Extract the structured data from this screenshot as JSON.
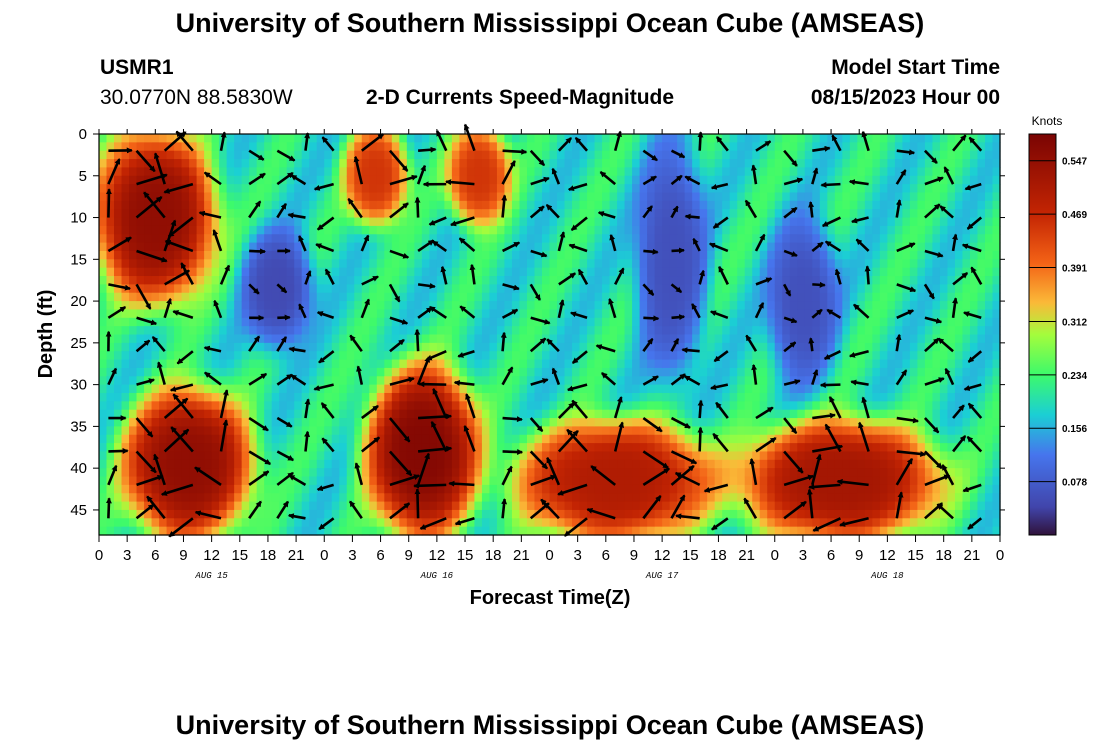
{
  "header": {
    "title": "University of Southern Mississippi Ocean Cube (AMSEAS)",
    "station": "USMR1",
    "coords": "30.0770N  88.5830W",
    "product": "2-D Currents Speed-Magnitude",
    "model_start_label": "Model Start Time",
    "model_start_value": "08/15/2023 Hour 00"
  },
  "footer_title": "University of Southern Mississippi Ocean Cube (AMSEAS)",
  "chart_data": {
    "type": "heatmap",
    "title": "2-D Currents Speed-Magnitude",
    "xlabel": "Forecast Time(Z)",
    "ylabel": "Depth (ft)",
    "x_range_hours": [
      0,
      96
    ],
    "y_range_ft": [
      0,
      48
    ],
    "x_tick_hours": [
      0,
      3,
      6,
      9,
      12,
      15,
      18,
      21,
      24,
      27,
      30,
      33,
      36,
      39,
      42,
      45,
      48,
      51,
      54,
      57,
      60,
      63,
      66,
      69,
      72,
      75,
      78,
      81,
      84,
      87,
      90,
      93,
      96
    ],
    "x_tick_labels": [
      "0",
      "3",
      "6",
      "9",
      "12",
      "15",
      "18",
      "21",
      "0",
      "3",
      "6",
      "9",
      "12",
      "15",
      "18",
      "21",
      "0",
      "3",
      "6",
      "9",
      "12",
      "15",
      "18",
      "21",
      "0",
      "3",
      "6",
      "9",
      "12",
      "15",
      "18",
      "21",
      "0"
    ],
    "date_labels": [
      {
        "label": "AUG 15",
        "hour": 12
      },
      {
        "label": "AUG 16",
        "hour": 36
      },
      {
        "label": "AUG 17",
        "hour": 60
      },
      {
        "label": "AUG 18",
        "hour": 84
      }
    ],
    "y_ticks": [
      0,
      5,
      10,
      15,
      20,
      25,
      30,
      35,
      40,
      45
    ],
    "y_tick_labels": [
      "0",
      "5",
      "10",
      "15",
      "20",
      "25",
      "30",
      "35",
      "40",
      "45"
    ],
    "colorbar": {
      "unit": "Knots",
      "min": 0.0,
      "max": 0.586,
      "ticks": [
        0.547,
        0.469,
        0.391,
        0.312,
        0.234,
        0.156,
        0.078
      ],
      "tick_labels": [
        "0.547",
        "0.469",
        "0.391",
        "0.312",
        "0.234",
        "0.156",
        "0.078"
      ]
    },
    "speed_features": [
      {
        "name": "upper-left high",
        "hours": [
          0,
          12
        ],
        "depth_ft": [
          0,
          20
        ],
        "knots": 0.55
      },
      {
        "name": "surface high 1",
        "hours": [
          27,
          32
        ],
        "depth_ft": [
          0,
          10
        ],
        "knots": 0.45
      },
      {
        "name": "surface high 2",
        "hours": [
          38,
          43
        ],
        "depth_ft": [
          0,
          10
        ],
        "knots": 0.45
      },
      {
        "name": "mid low 1",
        "hours": [
          16,
          22
        ],
        "depth_ft": [
          12,
          25
        ],
        "knots": 0.05
      },
      {
        "name": "mid low 2",
        "hours": [
          58,
          64
        ],
        "depth_ft": [
          0,
          30
        ],
        "knots": 0.06
      },
      {
        "name": "mid low 3",
        "hours": [
          72,
          78
        ],
        "depth_ft": [
          10,
          30
        ],
        "knots": 0.06
      },
      {
        "name": "deep high 1",
        "hours": [
          3,
          16
        ],
        "depth_ft": [
          31,
          48
        ],
        "knots": 0.55
      },
      {
        "name": "deep high 2",
        "hours": [
          29,
          40
        ],
        "depth_ft": [
          28,
          48
        ],
        "knots": 0.57
      },
      {
        "name": "deep high 3",
        "hours": [
          44,
          66
        ],
        "depth_ft": [
          35,
          48
        ],
        "knots": 0.5
      },
      {
        "name": "deep high 4",
        "hours": [
          68,
          90
        ],
        "depth_ft": [
          35,
          48
        ],
        "knots": 0.52
      }
    ]
  }
}
